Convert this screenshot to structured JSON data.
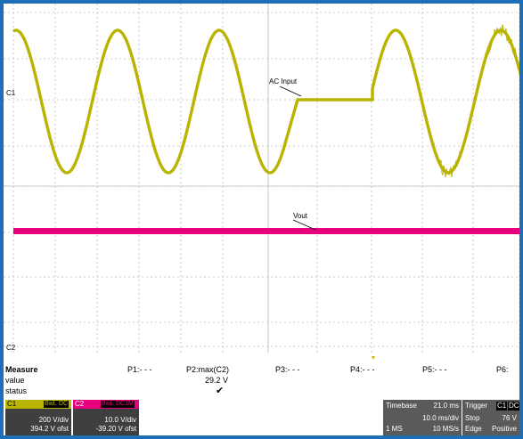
{
  "scope": {
    "ch1_marker": "C1",
    "ch2_marker": "C2",
    "ac_input_label": "AC Input",
    "vout_label": "Vout",
    "colors": {
      "ch1": "#b8b400",
      "ch2": "#e6007e",
      "grid": "#bdbdbd",
      "trigger": "#e8a500"
    }
  },
  "measure": {
    "title": "Measure",
    "row_value": "value",
    "row_status": "status",
    "p1": "P1:- - -",
    "p2": "P2:max(C2)",
    "p3": "P3:- - -",
    "p4": "P4:- - -",
    "p5": "P5:- - -",
    "p6": "P6:",
    "p2_value": "29.2 V",
    "p2_status": "✔"
  },
  "channels": {
    "c1": {
      "label": "C1",
      "badge1": "BwL",
      "badge2": "DC",
      "vdiv": "200 V/div",
      "offset": "394.2 V ofst"
    },
    "c2": {
      "label": "C2",
      "badge1": "BwL",
      "badge2": "DC1M",
      "vdiv": "10.0 V/div",
      "offset": "-39.20 V ofst"
    }
  },
  "timebase": {
    "title": "Timebase",
    "delay": "21.0 ms",
    "tdiv": "10.0 ms/div",
    "samples": "1 MS",
    "rate": "10 MS/s"
  },
  "trigger": {
    "title": "Trigger",
    "badge1": "C1",
    "badge2": "DC",
    "mode": "Stop",
    "level": "76 V",
    "type": "Edge",
    "slope": "Positive"
  }
}
